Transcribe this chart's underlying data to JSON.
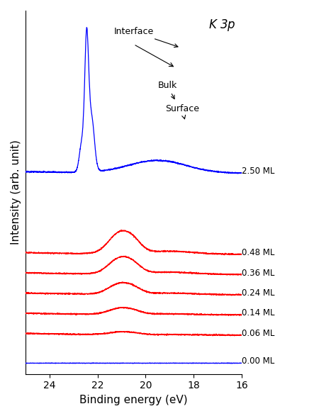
{
  "title": "K 3p",
  "xlabel": "Binding energy (eV)",
  "ylabel": "Intensity (arb. unit)",
  "x_min": 16,
  "x_max": 25,
  "labels": [
    "2.50 ML",
    "0.48 ML",
    "0.36 ML",
    "0.24 ML",
    "0.14 ML",
    "0.06 ML",
    "0.00 ML"
  ],
  "colors": [
    "blue",
    "red",
    "red",
    "red",
    "red",
    "red",
    "blue"
  ],
  "offsets": [
    5.5,
    3.2,
    2.6,
    2.0,
    1.4,
    0.8,
    0.0
  ],
  "background_color": "#ffffff",
  "annotation_interface": "Interface",
  "annotation_bulk": "Bulk",
  "annotation_surface": "Surface"
}
